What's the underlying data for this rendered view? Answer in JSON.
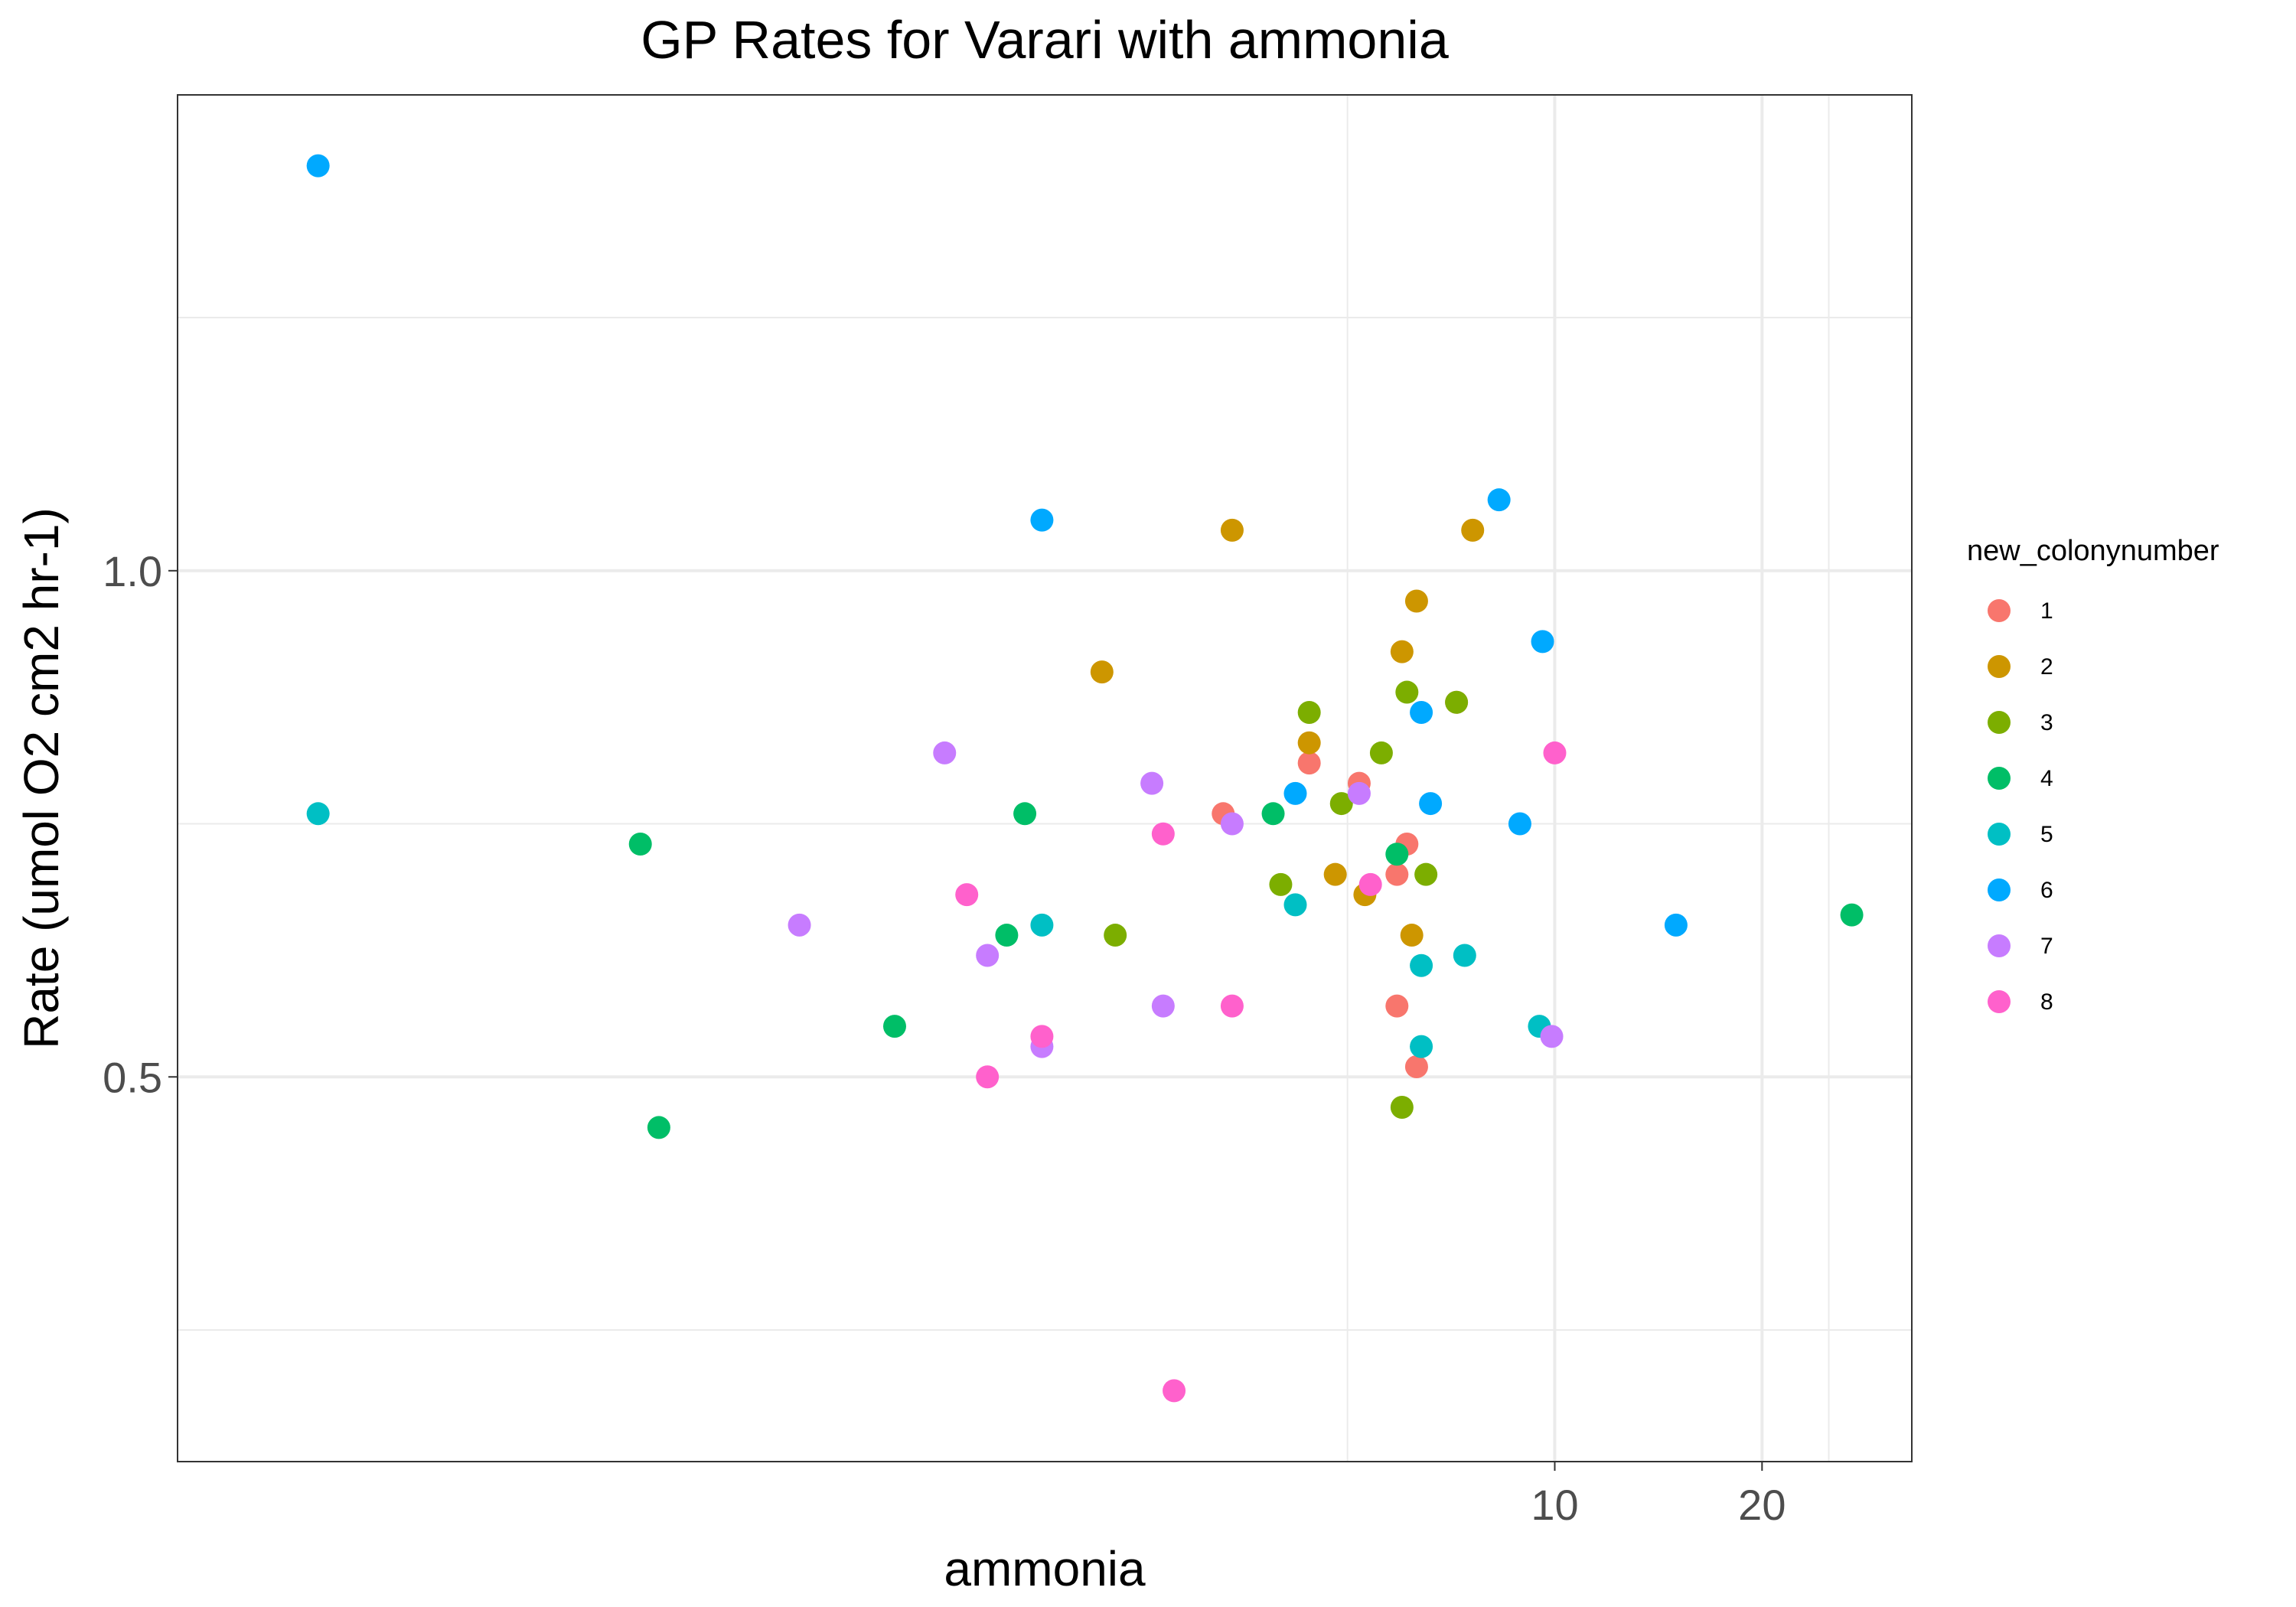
{
  "chart_data": {
    "type": "scatter",
    "title": "GP Rates for Varari with ammonia",
    "xlabel": "ammonia",
    "ylabel": "Rate (umol O2 cm2 hr-1)",
    "x_scale": "log",
    "xlim": [
      0.1,
      33
    ],
    "ylim": [
      0.12,
      1.47
    ],
    "x_ticks": [
      {
        "value": 10,
        "label": "10"
      },
      {
        "value": 20,
        "label": "20"
      }
    ],
    "x_minor_ticks": [
      5,
      25
    ],
    "y_ticks": [
      {
        "value": 0.5,
        "label": "0.5"
      },
      {
        "value": 1.0,
        "label": "1.0"
      }
    ],
    "y_minor_ticks": [
      0.25,
      0.75,
      1.25
    ],
    "grid": true,
    "legend": {
      "title": "new_colonynumber",
      "position": "right"
    },
    "series": [
      {
        "name": "1",
        "color": "#F8766D",
        "points": [
          [
            3.3,
            0.76
          ],
          [
            4.4,
            0.81
          ],
          [
            5.2,
            0.79
          ],
          [
            5.9,
            0.7
          ],
          [
            5.9,
            0.57
          ],
          [
            6.3,
            0.51
          ],
          [
            6.1,
            0.73
          ],
          [
            7.2,
            0.87
          ]
        ]
      },
      {
        "name": "2",
        "color": "#CD9600",
        "points": [
          [
            2.2,
            0.9
          ],
          [
            3.4,
            1.04
          ],
          [
            4.4,
            0.83
          ],
          [
            4.8,
            0.7
          ],
          [
            5.3,
            0.68
          ],
          [
            6.0,
            0.92
          ],
          [
            6.3,
            0.97
          ],
          [
            6.2,
            0.64
          ],
          [
            7.6,
            1.04
          ]
        ]
      },
      {
        "name": "3",
        "color": "#7CAE00",
        "points": [
          [
            2.3,
            0.64
          ],
          [
            4.0,
            0.69
          ],
          [
            4.4,
            0.86
          ],
          [
            4.9,
            0.77
          ],
          [
            5.6,
            0.82
          ],
          [
            6.1,
            0.88
          ],
          [
            7.2,
            0.87
          ],
          [
            6.5,
            0.7
          ],
          [
            6.0,
            0.47
          ]
        ]
      },
      {
        "name": "4",
        "color": "#00BE67",
        "points": [
          [
            0.47,
            0.73
          ],
          [
            0.5,
            0.45
          ],
          [
            1.1,
            0.55
          ],
          [
            1.6,
            0.64
          ],
          [
            1.7,
            0.76
          ],
          [
            3.9,
            0.76
          ],
          [
            5.9,
            0.72
          ],
          [
            27,
            0.66
          ]
        ]
      },
      {
        "name": "5",
        "color": "#00BFC4",
        "points": [
          [
            0.16,
            0.76
          ],
          [
            1.8,
            0.65
          ],
          [
            4.2,
            0.67
          ],
          [
            6.4,
            0.61
          ],
          [
            6.4,
            0.53
          ],
          [
            7.4,
            0.62
          ],
          [
            9.5,
            0.55
          ]
        ]
      },
      {
        "name": "6",
        "color": "#00A9FF",
        "points": [
          [
            0.16,
            1.4
          ],
          [
            1.8,
            1.05
          ],
          [
            4.2,
            0.78
          ],
          [
            6.4,
            0.86
          ],
          [
            6.6,
            0.77
          ],
          [
            8.3,
            1.07
          ],
          [
            8.9,
            0.75
          ],
          [
            9.6,
            0.93
          ],
          [
            15,
            0.65
          ]
        ]
      },
      {
        "name": "7",
        "color": "#C77CFF",
        "points": [
          [
            0.8,
            0.65
          ],
          [
            1.3,
            0.82
          ],
          [
            1.5,
            0.62
          ],
          [
            1.8,
            0.53
          ],
          [
            2.6,
            0.79
          ],
          [
            2.7,
            0.57
          ],
          [
            3.4,
            0.75
          ],
          [
            5.2,
            0.78
          ],
          [
            9.9,
            0.54
          ]
        ]
      },
      {
        "name": "8",
        "color": "#FF61CC",
        "points": [
          [
            1.4,
            0.68
          ],
          [
            1.5,
            0.5
          ],
          [
            1.8,
            0.54
          ],
          [
            2.7,
            0.74
          ],
          [
            2.8,
            0.19
          ],
          [
            3.4,
            0.57
          ],
          [
            5.4,
            0.69
          ],
          [
            10,
            0.82
          ]
        ]
      }
    ]
  }
}
